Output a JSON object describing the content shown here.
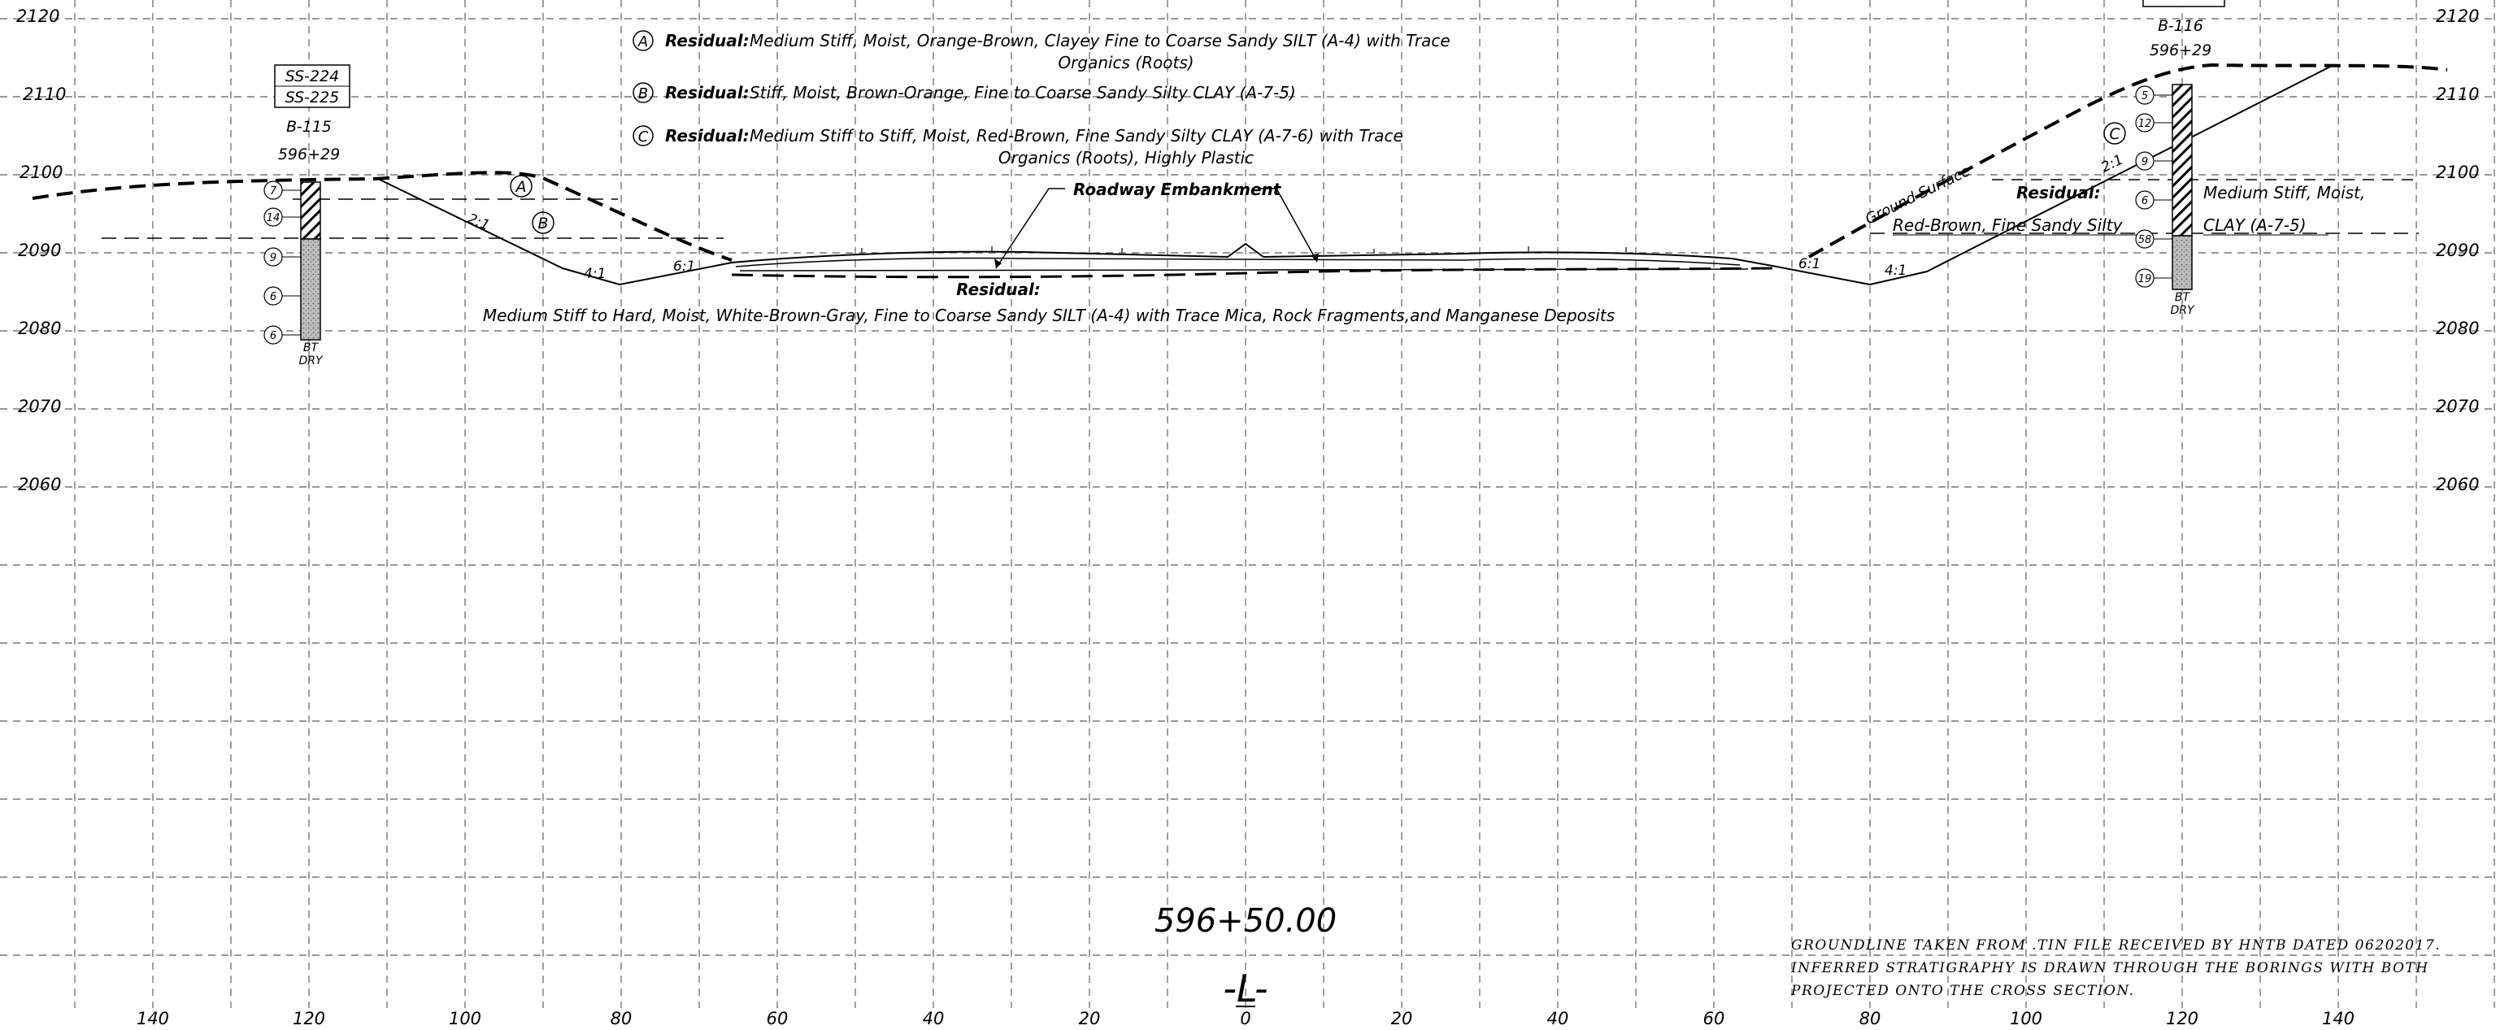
{
  "elevations": [
    "2120",
    "2110",
    "2100",
    "2090",
    "2080",
    "2070",
    "2060"
  ],
  "offsets_left": [
    "140",
    "120",
    "100",
    "80",
    "60",
    "40",
    "20"
  ],
  "offset_center": "0",
  "offsets_right": [
    "20",
    "40",
    "60",
    "80",
    "100",
    "120",
    "140"
  ],
  "legend": [
    {
      "letter": "A",
      "label": "Residual:",
      "line1": "Medium  Stiff,  Moist,  Orange-Brown,  Clayey  Fine  to  Coarse  Sandy  SILT  (A-4) with  Trace",
      "line2": "Organics  (Roots)"
    },
    {
      "letter": "B",
      "label": "Residual:",
      "line1": "Stiff,  Moist,  Brown-Orange,  Fine  to  Coarse  Sandy  Silty  CLAY  (A-7-5)",
      "line2": ""
    },
    {
      "letter": "C",
      "label": "Residual:",
      "line1": "Medium  Stiff  to  Stiff,  Moist,  Red-Brown,  Fine  Sandy  Silty  CLAY  (A-7-6) with  Trace",
      "line2": "Organics  (Roots),  Highly  Plastic"
    }
  ],
  "boring_left": {
    "samples": [
      "SS-224",
      "SS-225"
    ],
    "id": "B-115",
    "station": "596+29",
    "blows": [
      "7",
      "14",
      "9",
      "6",
      "6"
    ],
    "bottom1": "BT",
    "bottom2": "DRY"
  },
  "boring_right": {
    "id": "B-116",
    "station": "596+29",
    "blows": [
      "5",
      "12",
      "9",
      "6",
      "58",
      "19"
    ],
    "bottom1": "BT",
    "bottom2": "DRY"
  },
  "labels": {
    "roadway_embankment": "Roadway  Embankment",
    "residual_bottom_title": "Residual:",
    "residual_bottom_desc": "Medium  Stiff  to  Hard,  Moist,  White-Brown-Gray,  Fine  to  Coarse  Sandy  SILT  (A-4) with  Trace  Mica,  Rock  Fragments,and  Manganese  Deposits",
    "ground_surface": "Ground  Surface",
    "residual_right_title": "Residual:",
    "residual_right_l1a": "Medium  Stiff,  Moist,",
    "residual_right_l1b": "Red-Brown,  Fine  Sandy  Silty",
    "residual_right_l2": "CLAY  (A-7-5)",
    "slopes": {
      "left_upper": "2:1",
      "left_mid": "4:1",
      "left_inner": "6:1",
      "right_inner": "6:1",
      "right_mid": "4:1",
      "right_upper": "2:1"
    },
    "zone_A": "A",
    "zone_B": "B",
    "zone_C": "C"
  },
  "station_title": "596+50.00",
  "alignment": "-L-",
  "notes": [
    "GROUNDLINE  TAKEN  FROM  .TIN  FILE  RECEIVED  BY  HNTB  DATED  06202017.",
    "INFERRED  STRATIGRAPHY  IS  DRAWN  THROUGH  THE  BORINGS  WITH  BOTH",
    "PROJECTED  ONTO  THE  CROSS  SECTION."
  ]
}
